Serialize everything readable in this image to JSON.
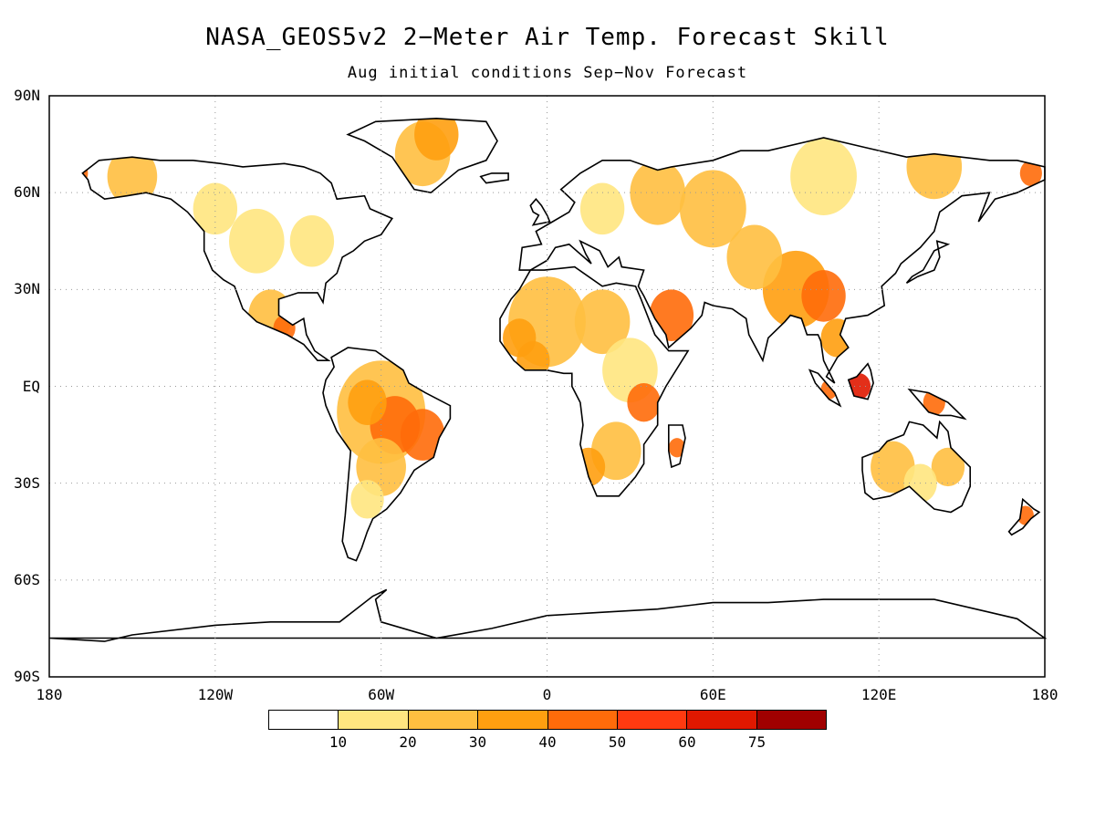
{
  "title": "NASA_GEOS5v2 2−Meter Air Temp. Forecast Skill",
  "subtitle": "Aug initial conditions   Sep−Nov Forecast",
  "map": {
    "projection": "equirectangular",
    "lon_range": [
      -180,
      180
    ],
    "lat_range": [
      -90,
      90
    ],
    "grid": true,
    "lat_labels": [
      {
        "lat": 90,
        "text": "90N"
      },
      {
        "lat": 60,
        "text": "60N"
      },
      {
        "lat": 30,
        "text": "30N"
      },
      {
        "lat": 0,
        "text": "EQ"
      },
      {
        "lat": -30,
        "text": "30S"
      },
      {
        "lat": -60,
        "text": "60S"
      },
      {
        "lat": -90,
        "text": "90S"
      }
    ],
    "lon_labels": [
      {
        "lon": -180,
        "text": "180"
      },
      {
        "lon": -120,
        "text": "120W"
      },
      {
        "lon": -60,
        "text": "60W"
      },
      {
        "lon": 0,
        "text": "0"
      },
      {
        "lon": 60,
        "text": "60E"
      },
      {
        "lon": 120,
        "text": "120E"
      },
      {
        "lon": 180,
        "text": "180"
      }
    ]
  },
  "colorbar": {
    "boxes": [
      {
        "color": "#ffffff"
      },
      {
        "color": "#ffe680"
      },
      {
        "color": "#ffbf40"
      },
      {
        "color": "#ff9f10"
      },
      {
        "color": "#ff6b0a"
      },
      {
        "color": "#ff3a10"
      },
      {
        "color": "#e01800"
      },
      {
        "color": "#a00000"
      }
    ],
    "labels": [
      "10",
      "20",
      "30",
      "40",
      "50",
      "60",
      "75"
    ]
  },
  "shading_colors": {
    "low": "#ffe680",
    "mid": "#ffbf40",
    "high": "#ff9f10",
    "higher": "#ff6b0a",
    "top": "#e01800"
  }
}
